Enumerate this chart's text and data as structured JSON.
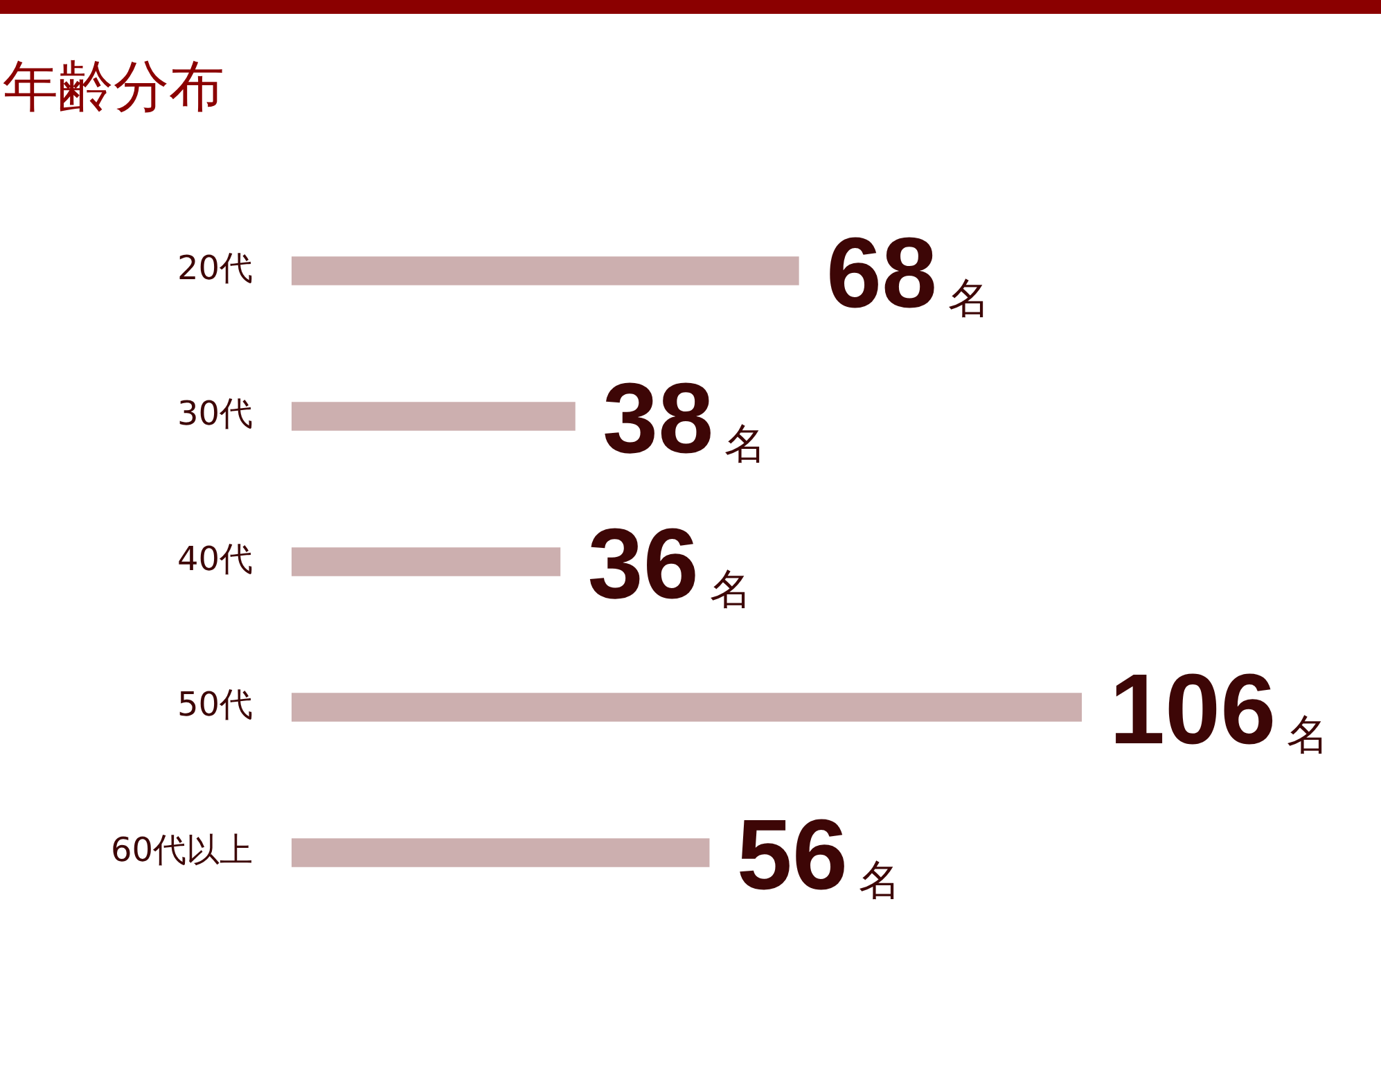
{
  "chart_data": {
    "type": "bar",
    "orientation": "horizontal",
    "title": "年齢分布",
    "categories": [
      "20代",
      "30代",
      "40代",
      "50代",
      "60代以上"
    ],
    "values": [
      68,
      38,
      36,
      106,
      56
    ],
    "value_labels": [
      "68名",
      "38名",
      "36名",
      "106名",
      "56名"
    ],
    "color": "#ccafaf",
    "xlim": [
      0,
      106
    ],
    "tick_labels": "y",
    "grid": false,
    "legend": false
  }
}
